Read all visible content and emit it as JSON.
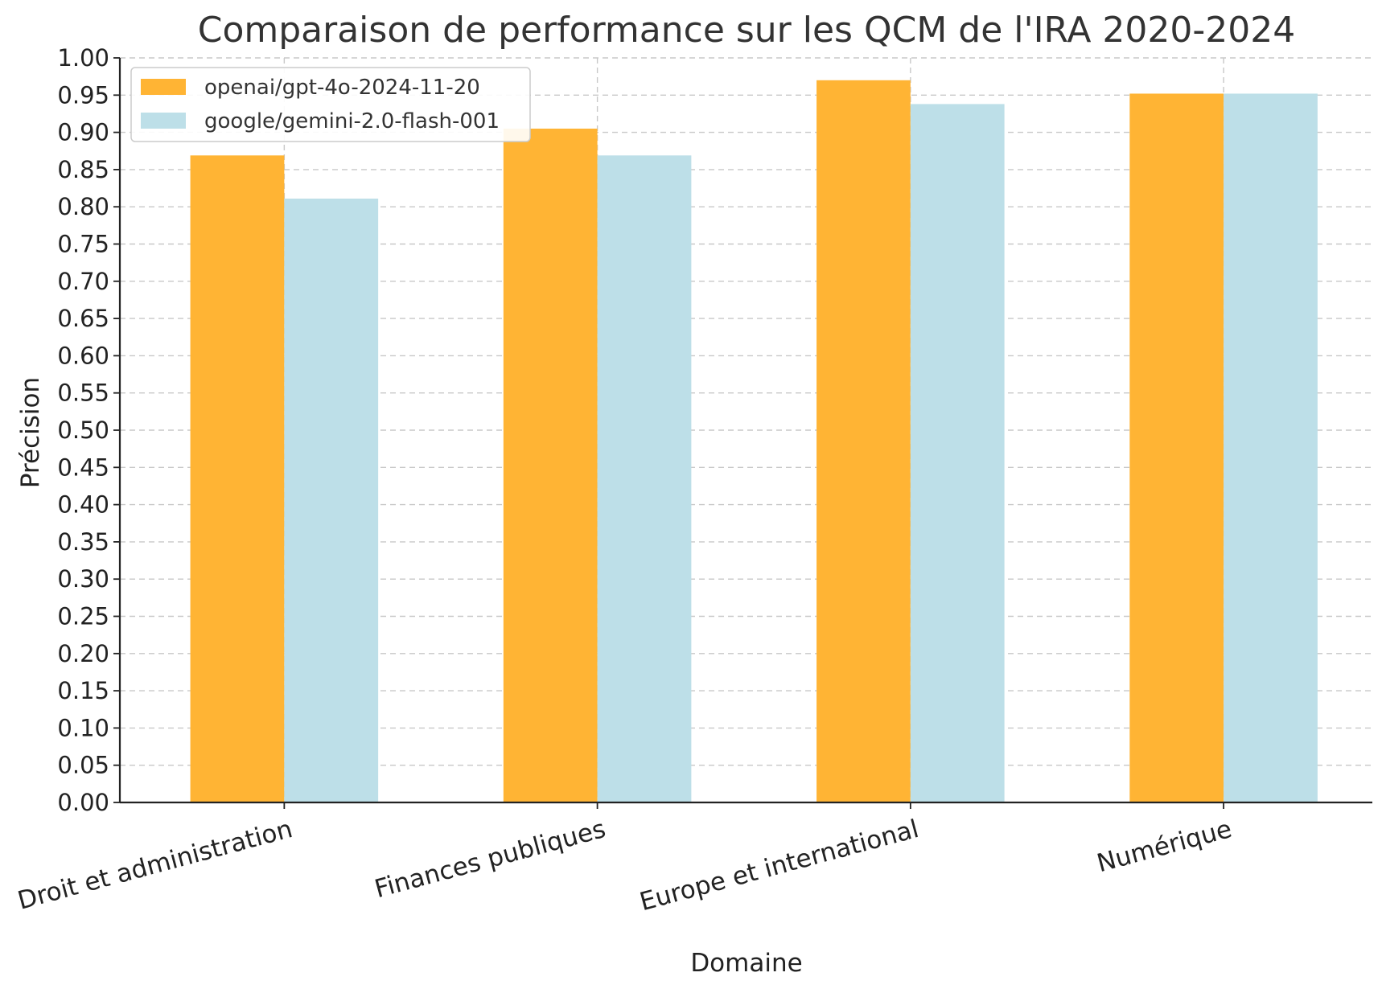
{
  "chart_data": {
    "type": "bar",
    "title": "Comparaison de performance sur les QCM de l'IRA 2020-2024",
    "xlabel": "Domaine",
    "ylabel": "Précision",
    "categories": [
      "Droit et administration",
      "Finances publiques",
      "Europe et international",
      "Numérique"
    ],
    "series": [
      {
        "name": "openai/gpt-4o-2024-11-20",
        "color": "#FFB434",
        "values": [
          0.869,
          0.905,
          0.97,
          0.952
        ]
      },
      {
        "name": "google/gemini-2.0-flash-001",
        "color": "#BDDFE8",
        "values": [
          0.811,
          0.869,
          0.938,
          0.952
        ]
      }
    ],
    "ylim": [
      0,
      1.0
    ],
    "yticks": [
      "0.00",
      "0.05",
      "0.10",
      "0.15",
      "0.20",
      "0.25",
      "0.30",
      "0.35",
      "0.40",
      "0.45",
      "0.50",
      "0.55",
      "0.60",
      "0.65",
      "0.70",
      "0.75",
      "0.80",
      "0.85",
      "0.90",
      "0.95",
      "1.00"
    ],
    "grid": true,
    "legend_position": "top-left"
  }
}
